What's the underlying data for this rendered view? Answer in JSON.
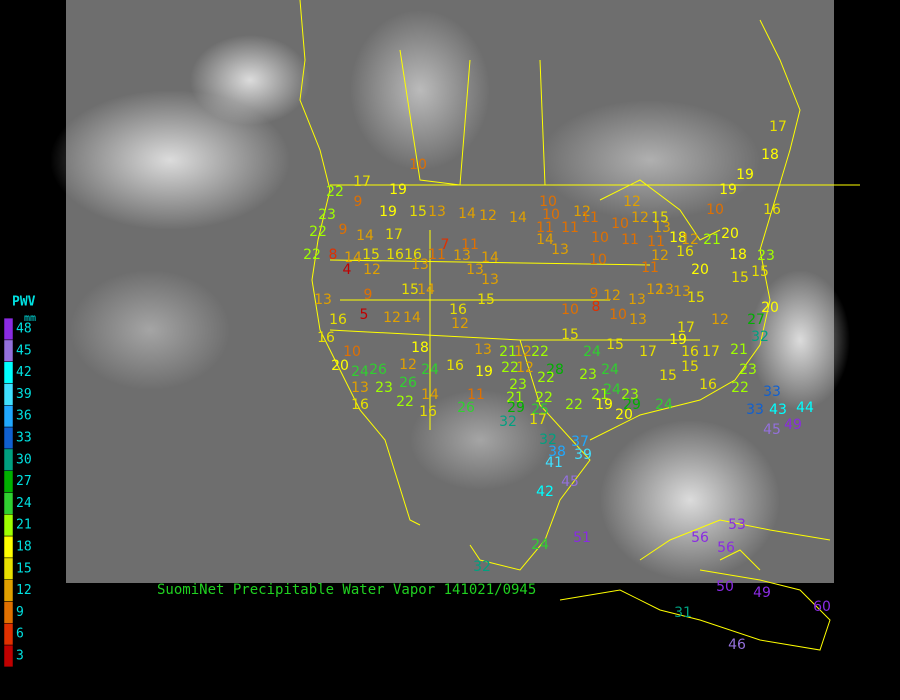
{
  "title": "SuomiNet Precipitable Water Vapor 141021/0945",
  "legend": {
    "title": "PWV",
    "unit": "mm",
    "ticks": [
      48,
      45,
      42,
      39,
      36,
      33,
      30,
      27,
      24,
      21,
      18,
      15,
      12,
      9,
      6,
      3
    ],
    "colors": [
      "#8a2be2",
      "#9370db",
      "#00ffff",
      "#40e0ff",
      "#20a8ff",
      "#1060d0",
      "#00a080",
      "#00b000",
      "#30d030",
      "#a0ff00",
      "#ffff00",
      "#e8e000",
      "#e0a000",
      "#e07000",
      "#e03000",
      "#c00000"
    ]
  },
  "stations": [
    10,
    17,
    19,
    22,
    9,
    23,
    19,
    15,
    13,
    14,
    12,
    14,
    10,
    10,
    12,
    11,
    12,
    12,
    15,
    22,
    9,
    14,
    17,
    11,
    11,
    10,
    13,
    18,
    12,
    21,
    20,
    10,
    19,
    19,
    18,
    17,
    16,
    22,
    8,
    14,
    15,
    16,
    16,
    11,
    13,
    14,
    7,
    11,
    14,
    13,
    10,
    11,
    11,
    12,
    16,
    20,
    18,
    15,
    23,
    4,
    12,
    13,
    13,
    10,
    11,
    12,
    13,
    13,
    15,
    15,
    20,
    9,
    15,
    14,
    13,
    15,
    13,
    5,
    16,
    12,
    14,
    16,
    12,
    10,
    9,
    8,
    12,
    13,
    10,
    13,
    16,
    18,
    13,
    21,
    12,
    22,
    15,
    15,
    24,
    17,
    19,
    17,
    16,
    17,
    12,
    27,
    32,
    21,
    10,
    20,
    24,
    26,
    12,
    16,
    19,
    22,
    12,
    28,
    23,
    24,
    15,
    15,
    23,
    13,
    23,
    26,
    24,
    23,
    22,
    24,
    21,
    23,
    16,
    22,
    33,
    21,
    22,
    22,
    19,
    29,
    16,
    22,
    14,
    11,
    26,
    29,
    25,
    20,
    24,
    33,
    43,
    44,
    16,
    17,
    32,
    45,
    49,
    32,
    37,
    38,
    39,
    41,
    45,
    42,
    24,
    51,
    56,
    53,
    56,
    32,
    50,
    49,
    60,
    31,
    46
  ]
}
